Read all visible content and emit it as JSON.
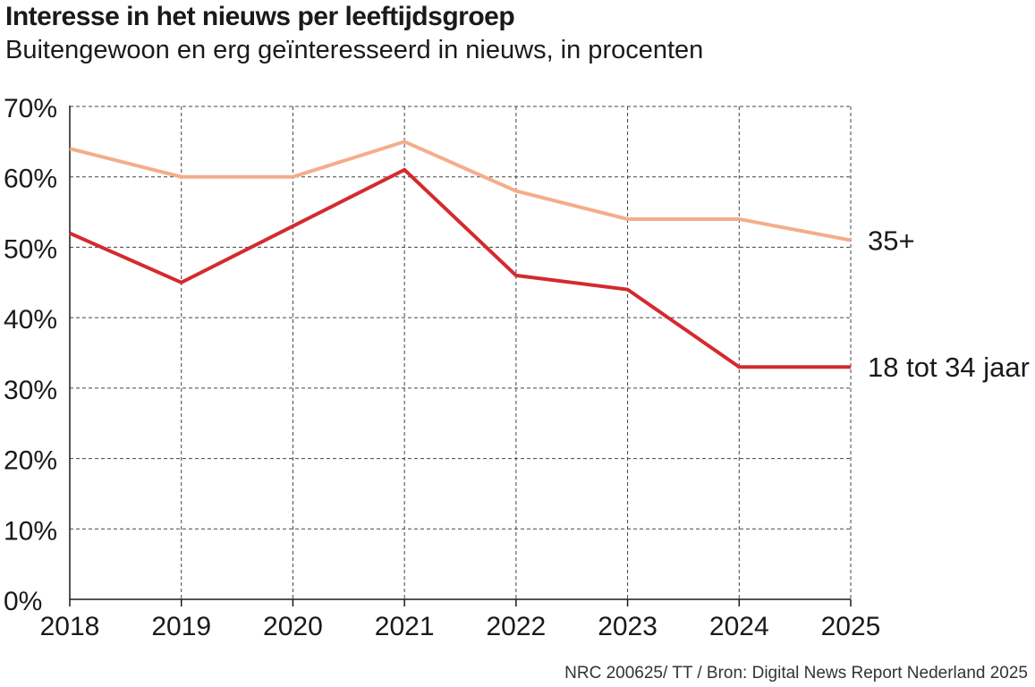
{
  "chart_data": {
    "type": "line",
    "title": "Interesse in het nieuws per leeftijdsgroep",
    "subtitle": "Buitengewoon en erg geïnteresseerd in nieuws, in procenten",
    "x": [
      "2018",
      "2019",
      "2020",
      "2021",
      "2022",
      "2023",
      "2024",
      "2025"
    ],
    "y_ticks": [
      "0%",
      "10%",
      "20%",
      "30%",
      "40%",
      "50%",
      "60%",
      "70%"
    ],
    "ylim": [
      0,
      70
    ],
    "grid": true,
    "series": [
      {
        "name": "35+",
        "color": "#f4ad8a",
        "values": [
          64,
          60,
          60,
          65,
          58,
          54,
          54,
          51
        ]
      },
      {
        "name": "18 tot 34 jaar",
        "color": "#d42a2f",
        "values": [
          52,
          45,
          53,
          61,
          46,
          44,
          33,
          33
        ]
      }
    ],
    "legend": "inline at line ends, right",
    "source": "NRC 200625/ TT / Bron: Digital News Report Nederland 2025"
  }
}
